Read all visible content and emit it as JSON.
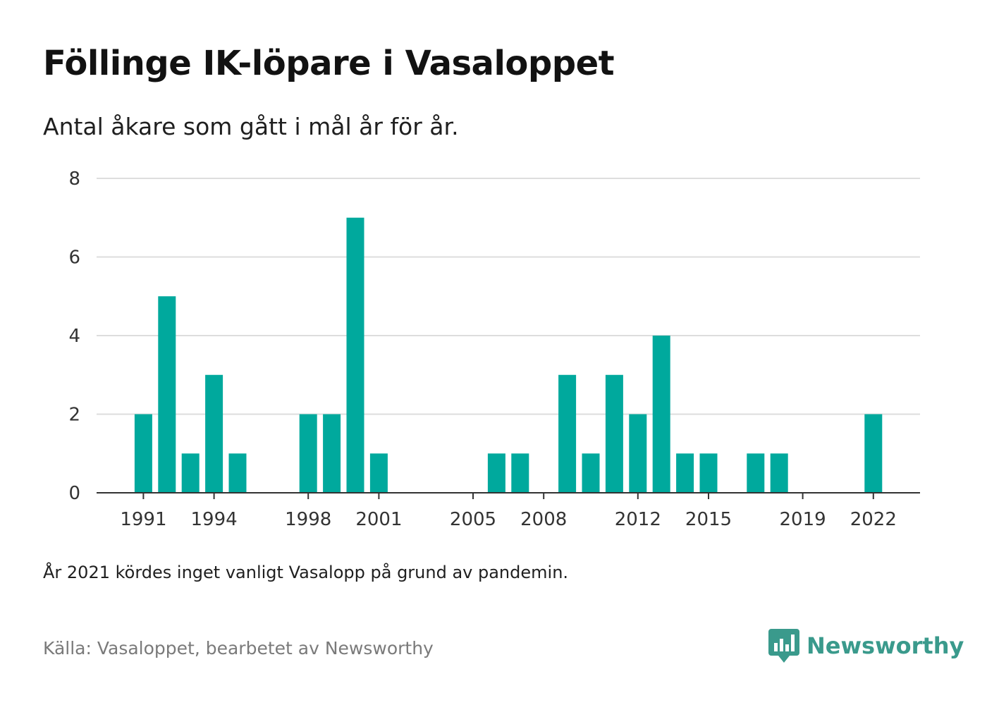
{
  "title": "Föllinge IK-löpare i Vasaloppet",
  "subtitle": "Antal åkare som gått i mål år för år.",
  "note": "År 2021 kördes inget vanligt Vasalopp på grund av pandemin.",
  "source": "Källa: Vasaloppet, bearbetet av Newsworthy",
  "brand": {
    "name": "Newsworthy",
    "color": "#3a9a8c",
    "icon": "newsworthy-logo-icon"
  },
  "colors": {
    "bar": "#00a99d",
    "grid": "#dddddd",
    "axis": "#333333"
  },
  "chart_data": {
    "type": "bar",
    "title": "Föllinge IK-löpare i Vasaloppet",
    "subtitle": "Antal åkare som gått i mål år för år.",
    "xlabel": "",
    "ylabel": "",
    "categories": [
      1990,
      1991,
      1992,
      1993,
      1994,
      1995,
      1996,
      1997,
      1998,
      1999,
      2000,
      2001,
      2002,
      2003,
      2004,
      2005,
      2006,
      2007,
      2008,
      2009,
      2010,
      2011,
      2012,
      2013,
      2014,
      2015,
      2016,
      2017,
      2018,
      2019,
      2020,
      2021,
      2022,
      2023
    ],
    "values": [
      0,
      2,
      5,
      1,
      3,
      1,
      0,
      0,
      2,
      2,
      7,
      1,
      0,
      0,
      0,
      0,
      1,
      1,
      0,
      3,
      1,
      3,
      2,
      4,
      1,
      1,
      0,
      1,
      1,
      0,
      0,
      0,
      2,
      0
    ],
    "x_tick_labels": [
      "1991",
      "1994",
      "1998",
      "2001",
      "2005",
      "2008",
      "2012",
      "2015",
      "2019",
      "2022"
    ],
    "y_ticks": [
      0,
      2,
      4,
      6,
      8
    ],
    "ylim": [
      0,
      8
    ],
    "grid": true,
    "legend": "none"
  }
}
